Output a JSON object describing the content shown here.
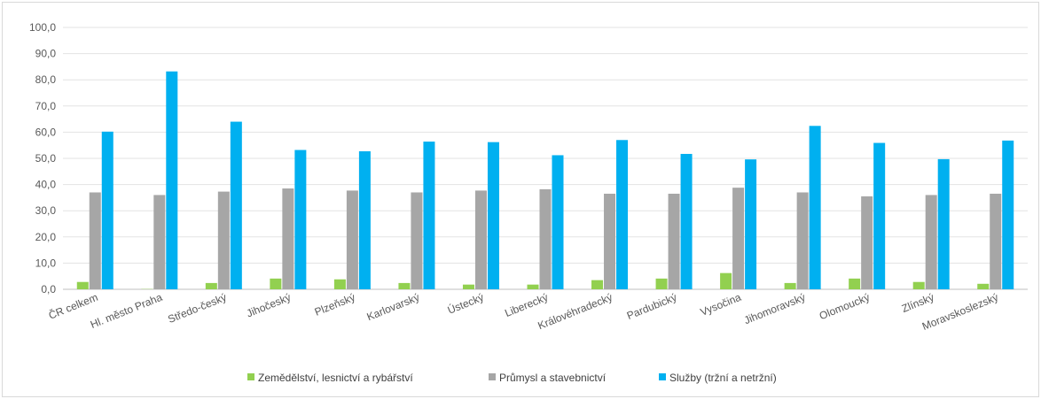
{
  "chart_data": {
    "type": "bar",
    "title": "",
    "xlabel": "",
    "ylabel": "",
    "ylim": [
      0,
      100
    ],
    "yticks": [
      "0,0",
      "10,0",
      "20,0",
      "30,0",
      "40,0",
      "50,0",
      "60,0",
      "70,0",
      "80,0",
      "90,0",
      "100,0"
    ],
    "grid": true,
    "legend_position": "bottom",
    "categories": [
      "ČR celkem",
      "Hl. město Praha",
      "Středo-český",
      "Jihočeský",
      "Plzeňský",
      "Karlovarský",
      "Ústecký",
      "Liberecký",
      "Královéhradecký",
      "Pardubický",
      "Vysočina",
      "Jihomoravský",
      "Olomoucký",
      "Zlínský",
      "Moravskoslezský"
    ],
    "series": [
      {
        "name": "Zemědělství, lesnictví a rybářství",
        "color": "#92d050",
        "values": [
          2.8,
          0.1,
          2.4,
          4.1,
          3.8,
          2.4,
          1.8,
          1.8,
          3.5,
          4.1,
          6.2,
          2.4,
          4.1,
          2.8,
          2.1
        ]
      },
      {
        "name": "Průmysl a stavebnictví",
        "color": "#a6a6a6",
        "values": [
          37.0,
          36.0,
          37.3,
          38.5,
          37.7,
          37.0,
          37.7,
          38.2,
          36.5,
          36.5,
          38.8,
          37.0,
          35.5,
          36.0,
          36.5
        ]
      },
      {
        "name": "Služby (tržní a netržní)",
        "color": "#00b0f0",
        "values": [
          60.2,
          83.2,
          64.0,
          53.2,
          52.7,
          56.4,
          56.2,
          51.2,
          57.0,
          51.7,
          49.6,
          62.4,
          55.9,
          49.7,
          56.8
        ]
      }
    ]
  }
}
